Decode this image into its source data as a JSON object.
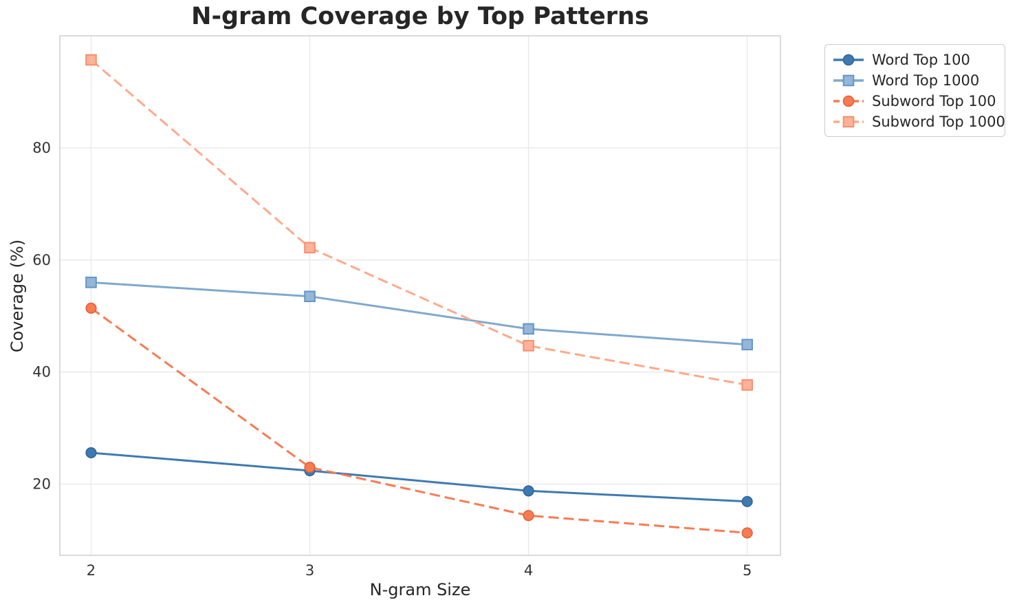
{
  "chart_data": {
    "type": "line",
    "title": "N-gram Coverage by Top Patterns",
    "xlabel": "N-gram Size",
    "ylabel": "Coverage (%)",
    "x": [
      2,
      3,
      4,
      5
    ],
    "xtick_labels": [
      "2",
      "3",
      "4",
      "5"
    ],
    "ytick_values": [
      20,
      40,
      60,
      80
    ],
    "xlim": [
      1.857,
      5.152
    ],
    "ylim": [
      7.3,
      100.0
    ],
    "grid": true,
    "legend_position": "outside upper right",
    "series": [
      {
        "name": "Word Top 100",
        "values": [
          25.6,
          22.4,
          18.8,
          16.9
        ],
        "color": "#3d7ab2",
        "marker_fill": "#3d7ab2",
        "marker_edge": "#336699",
        "marker": "circle",
        "line_style": "solid"
      },
      {
        "name": "Word Top 1000",
        "values": [
          56.0,
          53.5,
          47.7,
          44.9
        ],
        "color": "#7fa8ce",
        "marker_fill": "#94b6d8",
        "marker_edge": "#6495c4",
        "marker": "square",
        "line_style": "solid"
      },
      {
        "name": "Subword Top 100",
        "values": [
          51.4,
          23.0,
          14.4,
          11.3
        ],
        "color": "#fa7a52",
        "marker_fill": "#fa7a52",
        "marker_edge": "#e2603a",
        "marker": "circle",
        "line_style": "dashed"
      },
      {
        "name": "Subword Top 1000",
        "values": [
          95.7,
          62.2,
          44.7,
          37.7
        ],
        "color": "#ffa98b",
        "marker_fill": "#ffb29a",
        "marker_edge": "#f68f6b",
        "marker": "square",
        "line_style": "dashed"
      }
    ],
    "colors": {
      "grid": "#e9e9e9",
      "spine": "#cfcfcf",
      "title_text": "#262626",
      "tick_text": "#333333",
      "background": "#ffffff"
    }
  }
}
